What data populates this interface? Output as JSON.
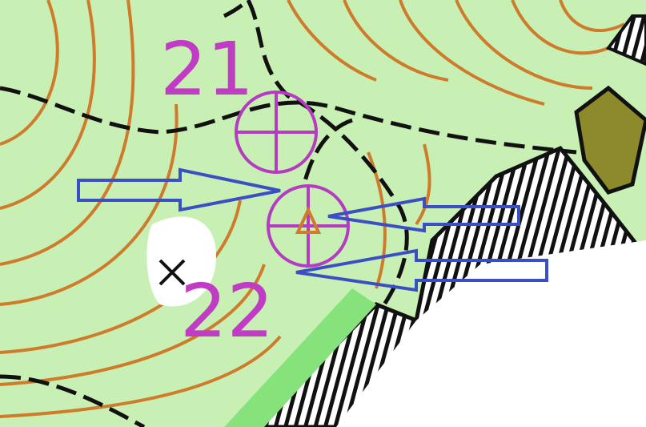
{
  "controls": [
    {
      "number": "21"
    },
    {
      "number": "22"
    }
  ]
}
